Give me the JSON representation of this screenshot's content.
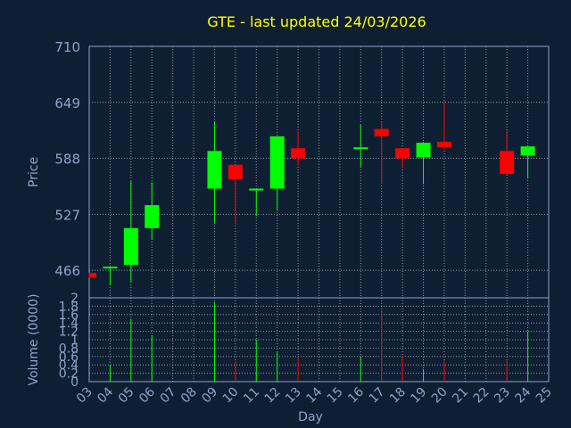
{
  "chart_data": {
    "type": "candlestick",
    "title": "GTE - last updated 24/03/2026",
    "xlabel": "Day",
    "price_panel": {
      "ylabel": "Price",
      "ylim": [
        436,
        710
      ],
      "yticks": [
        "466",
        "527",
        "588",
        "649",
        "710"
      ]
    },
    "volume_panel": {
      "ylabel": "Volume (0000)",
      "ylim": [
        0,
        2
      ],
      "yticks": [
        "0",
        "0.2",
        "0.4",
        "0.6",
        "0.8",
        "1",
        "1.2",
        "1.4",
        "1.6",
        "1.8",
        "2"
      ]
    },
    "x_ticks": [
      "03",
      "04",
      "05",
      "06",
      "07",
      "08",
      "09",
      "10",
      "11",
      "12",
      "13",
      "14",
      "15",
      "16",
      "17",
      "18",
      "19",
      "20",
      "21",
      "22",
      "23",
      "24",
      "25"
    ],
    "grid": true,
    "colors": {
      "background": "#0f1f33",
      "up": "#00ff00",
      "down": "#ff0000",
      "axis_text": "#8fa3c8",
      "title": "#ffff00",
      "frame": "#8fa3c8",
      "grid": "#ffffff"
    },
    "candles": [
      {
        "day": "03",
        "open": 463,
        "high": 463,
        "low": 458,
        "close": 458,
        "volume": 0.0
      },
      {
        "day": "04",
        "open": 468,
        "high": 470,
        "low": 450,
        "close": 470,
        "volume": 0.4
      },
      {
        "day": "05",
        "open": 472,
        "high": 563,
        "low": 453,
        "close": 512,
        "volume": 1.5
      },
      {
        "day": "06",
        "open": 512,
        "high": 562,
        "low": 500,
        "close": 537,
        "volume": 1.1
      },
      {
        "day": "09",
        "open": 555,
        "high": 628,
        "low": 518,
        "close": 596,
        "volume": 1.9
      },
      {
        "day": "10",
        "open": 581,
        "high": 581,
        "low": 516,
        "close": 565,
        "volume": 0.5
      },
      {
        "day": "11",
        "open": 553,
        "high": 553,
        "low": 525,
        "close": 555,
        "volume": 1.0
      },
      {
        "day": "12",
        "open": 555,
        "high": 612,
        "low": 531,
        "close": 612,
        "volume": 0.7
      },
      {
        "day": "13",
        "open": 599,
        "high": 618,
        "low": 580,
        "close": 588,
        "volume": 0.6
      },
      {
        "day": "16",
        "open": 598,
        "high": 625,
        "low": 578,
        "close": 600,
        "volume": 0.6
      },
      {
        "day": "17",
        "open": 620,
        "high": 627,
        "low": 560,
        "close": 612,
        "volume": 1.7
      },
      {
        "day": "18",
        "open": 599,
        "high": 599,
        "low": 577,
        "close": 588,
        "volume": 0.6
      },
      {
        "day": "19",
        "open": 589,
        "high": 606,
        "low": 560,
        "close": 605,
        "volume": 0.3
      },
      {
        "day": "20",
        "open": 606,
        "high": 650,
        "low": 598,
        "close": 600,
        "volume": 0.5
      },
      {
        "day": "23",
        "open": 596,
        "high": 618,
        "low": 570,
        "close": 571,
        "volume": 0.5
      },
      {
        "day": "24",
        "open": 591,
        "high": 601,
        "low": 566,
        "close": 601,
        "volume": 1.2
      }
    ]
  }
}
